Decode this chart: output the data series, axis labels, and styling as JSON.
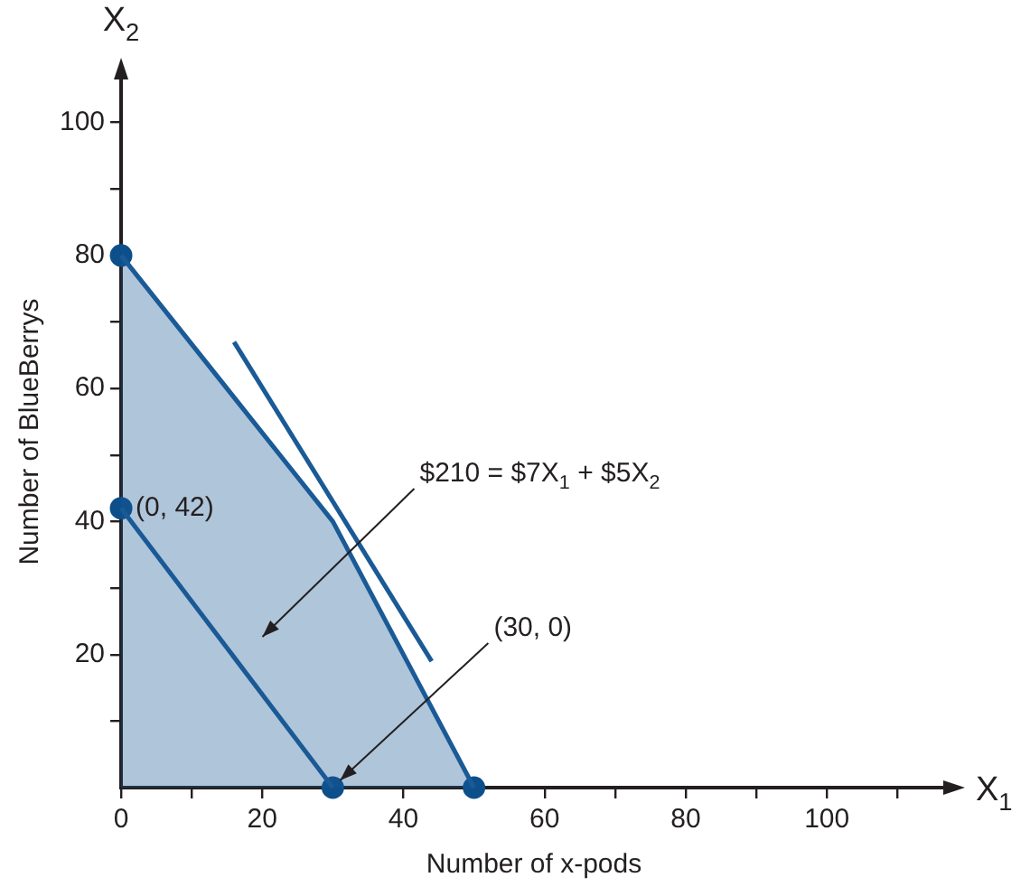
{
  "chart_data": {
    "type": "line",
    "xlabel": "Number of x-pods",
    "ylabel": "Number of BlueBerrys",
    "xlim": [
      0,
      117
    ],
    "ylim": [
      0,
      107
    ],
    "xticks": [
      0,
      {
        "value": 10,
        "label": null
      },
      20,
      {
        "value": 30,
        "label": null
      },
      40,
      {
        "value": 50,
        "label": null
      },
      60,
      {
        "value": 70,
        "label": null
      },
      80,
      {
        "value": 90,
        "label": null
      },
      100,
      {
        "value": 110,
        "label": null
      }
    ],
    "yticks": [
      {
        "value": 10,
        "label": null
      },
      20,
      {
        "value": 30,
        "label": null
      },
      40,
      {
        "value": 50,
        "label": null
      },
      60,
      {
        "value": 70,
        "label": null
      },
      80,
      {
        "value": 90,
        "label": null
      },
      100
    ],
    "series": [
      {
        "type": "area",
        "color": "#1a5a96",
        "x": [
          0,
          30,
          50
        ],
        "values": [
          80,
          40,
          0
        ]
      },
      {
        "type": "line",
        "color": "#1a5a96",
        "x": [
          0,
          30
        ],
        "values": [
          42,
          0
        ]
      },
      {
        "type": "line",
        "color": "#1a5a96",
        "x": [
          16,
          44
        ],
        "values": [
          67,
          19
        ]
      },
      {
        "type": "scatter",
        "color": "#0d4f8b",
        "marker": "circle",
        "x": [
          0,
          0,
          30,
          50
        ],
        "values": [
          80,
          42,
          0,
          0
        ],
        "value_labels": [
          null,
          "(0, 42)",
          null,
          null
        ]
      }
    ],
    "annotations": [
      "X$_{1}$",
      "X$_{2}$",
      "$210 = $7X$_{1}$ + $5X$_{2}$",
      {
        "text": "(30, 0)",
        "x": 30,
        "y": 0
      }
    ]
  }
}
